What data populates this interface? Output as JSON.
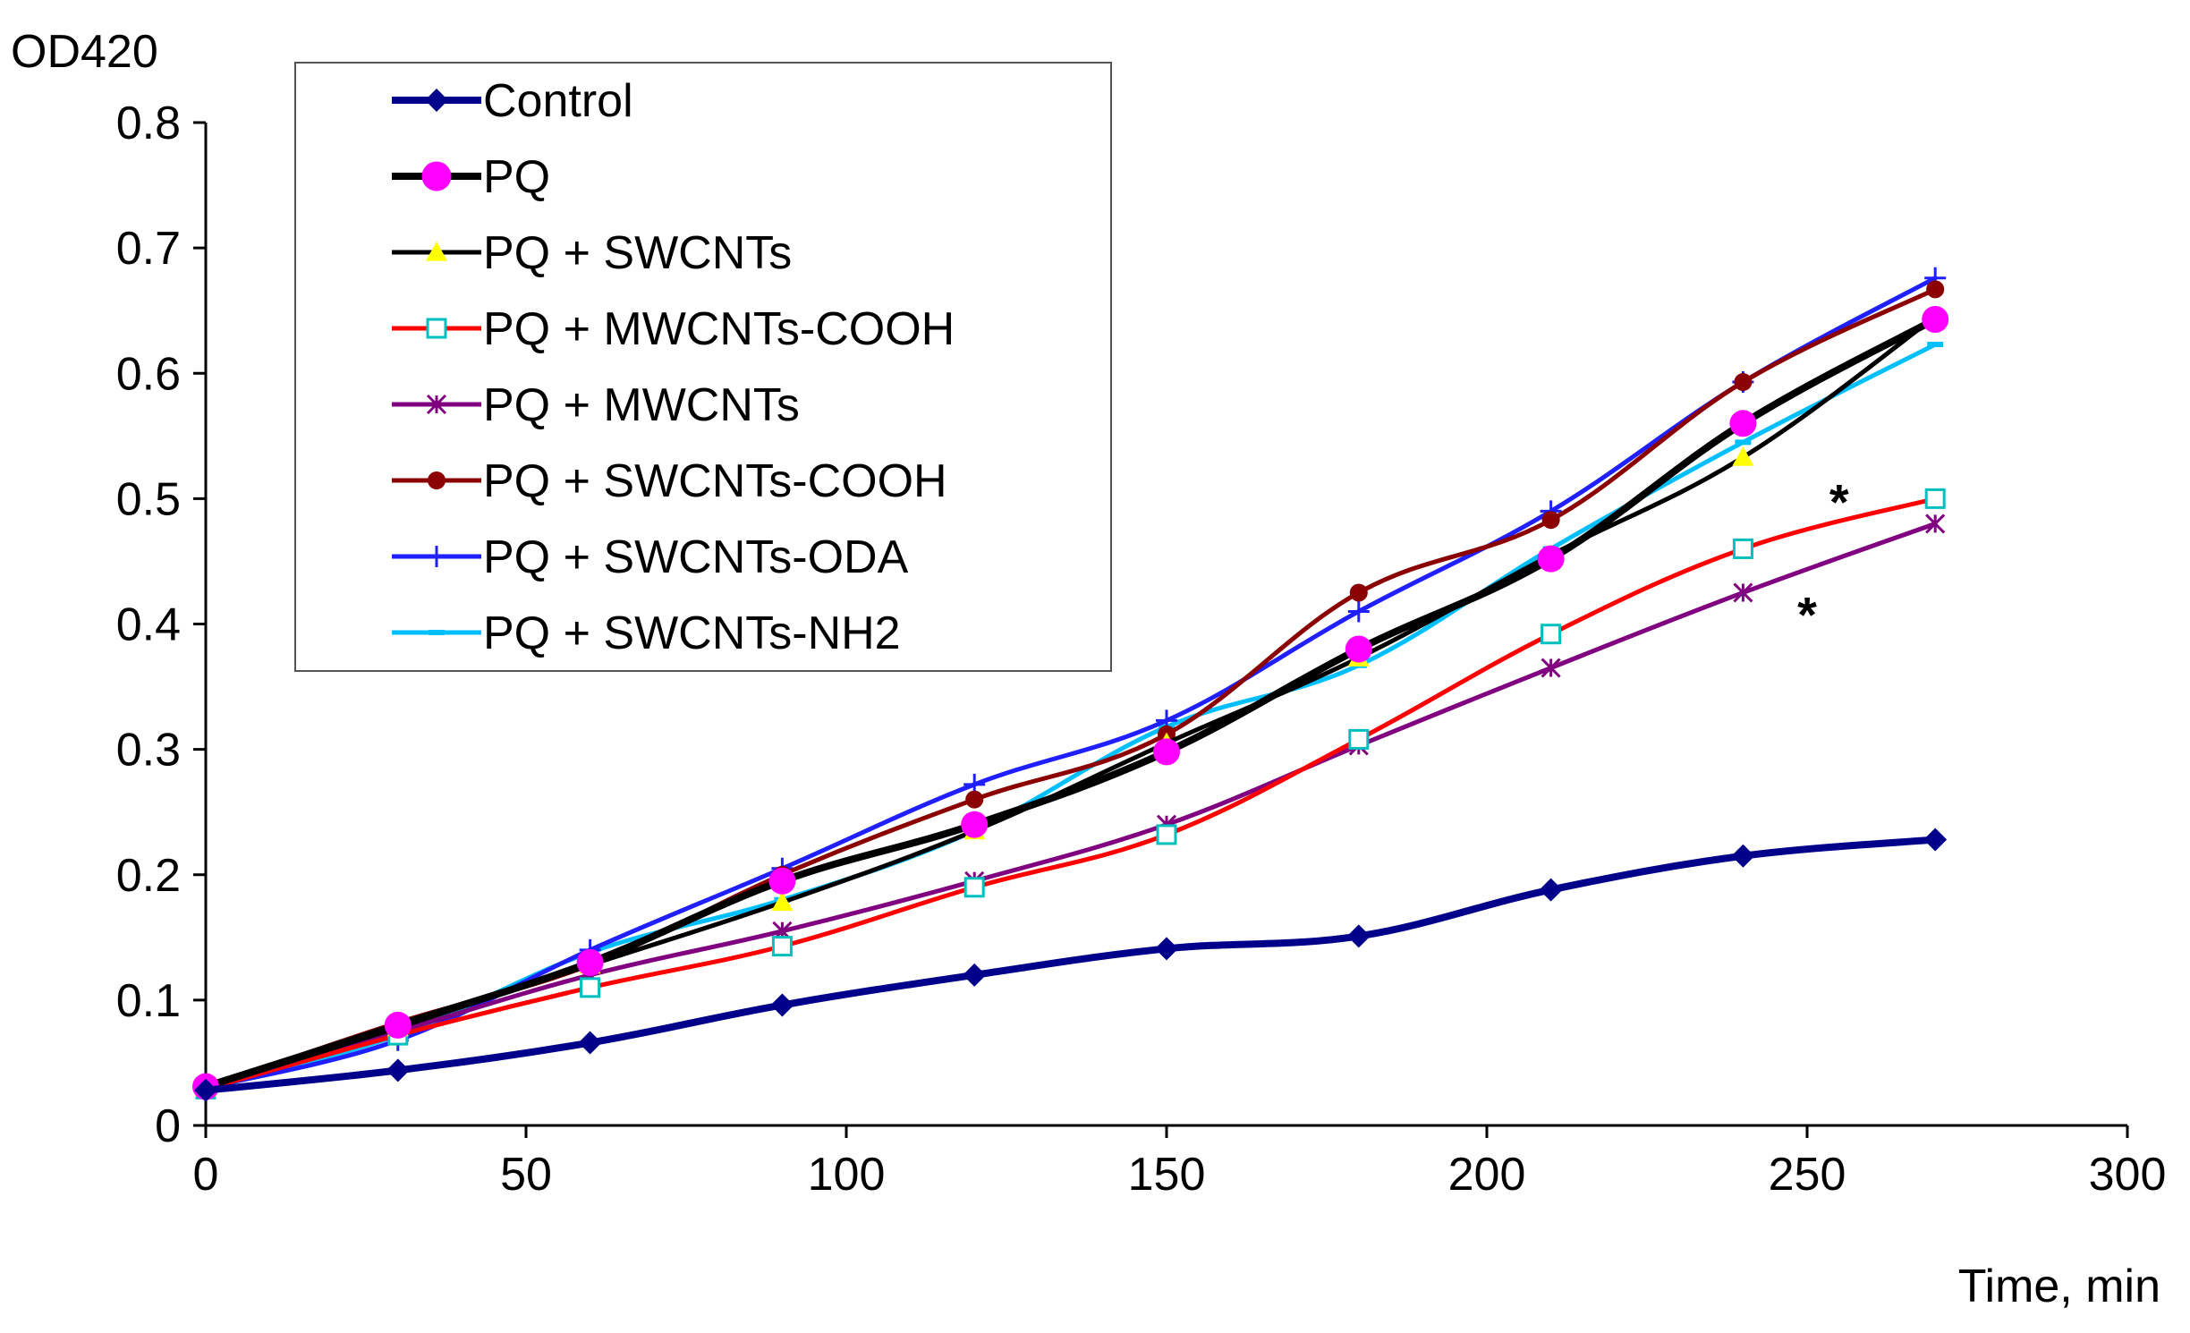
{
  "chart_data": {
    "type": "line",
    "title": "",
    "xlabel": "Time, min",
    "ylabel": "OD420",
    "xlim": [
      0,
      300
    ],
    "ylim": [
      0,
      0.8
    ],
    "xticks": [
      0,
      50,
      100,
      150,
      200,
      250,
      300
    ],
    "yticks": [
      0,
      0.1,
      0.2,
      0.3,
      0.4,
      0.5,
      0.6,
      0.7,
      0.8
    ],
    "xtick_labels": [
      "0",
      "50",
      "100",
      "150",
      "200",
      "250",
      "300"
    ],
    "ytick_labels": [
      "0",
      "0.1",
      "0.2",
      "0.3",
      "0.4",
      "0.5",
      "0.6",
      "0.7",
      "0.8"
    ],
    "grid": false,
    "legend_position": "top-left",
    "x": [
      0,
      30,
      60,
      90,
      120,
      150,
      180,
      210,
      240,
      270
    ],
    "series": [
      {
        "name": "Control",
        "color": "#00008B",
        "marker": "diamond",
        "line_weight": "thick",
        "values": [
          0.028,
          0.044,
          0.066,
          0.096,
          0.12,
          0.141,
          0.151,
          0.188,
          0.215,
          0.228
        ]
      },
      {
        "name": "PQ",
        "color": "#000000",
        "marker_color": "#FF00FF",
        "marker": "circle",
        "line_weight": "thick",
        "values": [
          0.031,
          0.08,
          0.13,
          0.195,
          0.24,
          0.298,
          0.38,
          0.452,
          0.56,
          0.643
        ]
      },
      {
        "name": "PQ + SWCNTs",
        "color": "#000000",
        "marker_color": "#FFFF00",
        "marker": "triangle",
        "line_weight": "normal",
        "values": [
          0.03,
          0.078,
          0.128,
          0.178,
          0.235,
          0.305,
          0.373,
          0.455,
          0.533,
          0.645
        ]
      },
      {
        "name": "PQ + MWCNTs-COOH",
        "color": "#FF0000",
        "marker_color": "#00BFBF",
        "marker": "square-open",
        "line_weight": "normal",
        "values": [
          0.029,
          0.072,
          0.11,
          0.143,
          0.19,
          0.232,
          0.308,
          0.392,
          0.46,
          0.5
        ]
      },
      {
        "name": "PQ + MWCNTs",
        "color": "#800080",
        "marker": "asterisk",
        "line_weight": "normal",
        "values": [
          0.03,
          0.075,
          0.12,
          0.155,
          0.195,
          0.24,
          0.303,
          0.365,
          0.425,
          0.48
        ]
      },
      {
        "name": "PQ + SWCNTs-COOH",
        "color": "#8B0000",
        "marker": "dot",
        "line_weight": "normal",
        "values": [
          0.03,
          0.082,
          0.128,
          0.2,
          0.26,
          0.312,
          0.425,
          0.483,
          0.593,
          0.667
        ]
      },
      {
        "name": "PQ + SWCNTs-ODA",
        "color": "#1F1FFF",
        "marker": "plus",
        "line_weight": "normal",
        "values": [
          0.03,
          0.068,
          0.14,
          0.205,
          0.272,
          0.323,
          0.41,
          0.49,
          0.593,
          0.676
        ]
      },
      {
        "name": "PQ + SWCNTs-NH2",
        "color": "#00BFFF",
        "marker": "dash",
        "line_weight": "normal",
        "values": [
          0.03,
          0.072,
          0.138,
          0.18,
          0.235,
          0.318,
          0.367,
          0.46,
          0.545,
          0.623
        ]
      }
    ],
    "annotations": [
      {
        "text": "*",
        "x": 255,
        "y": 0.505
      },
      {
        "text": "*",
        "x": 250,
        "y": 0.415
      }
    ]
  }
}
